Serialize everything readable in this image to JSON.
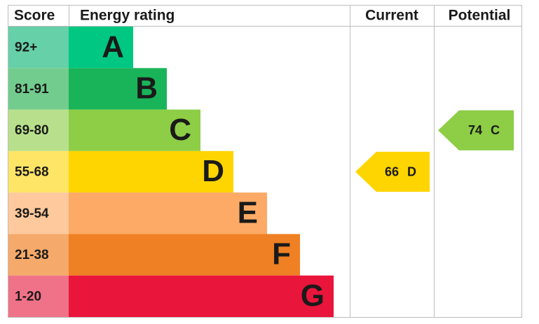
{
  "chart_data": {
    "type": "epc",
    "headers": [
      "Score",
      "Energy rating",
      "Current",
      "Potential"
    ],
    "bands": [
      {
        "score": "92+",
        "letter": "A",
        "color": "#00c781",
        "score_color": "#66d0a8"
      },
      {
        "score": "81-91",
        "letter": "B",
        "color": "#19b459",
        "score_color": "#72cc8e"
      },
      {
        "score": "69-80",
        "letter": "C",
        "color": "#8dce46",
        "score_color": "#b8e08c"
      },
      {
        "score": "55-68",
        "letter": "D",
        "color": "#ffd500",
        "score_color": "#ffe566"
      },
      {
        "score": "39-54",
        "letter": "E",
        "color": "#fcaa65",
        "score_color": "#fdc99d"
      },
      {
        "score": "21-38",
        "letter": "F",
        "color": "#ef8023",
        "score_color": "#f5a96a"
      },
      {
        "score": "1-20",
        "letter": "G",
        "color": "#e9153b",
        "score_color": "#f07288"
      }
    ],
    "current": {
      "value": 66,
      "band": "D"
    },
    "potential": {
      "value": 74,
      "band": "C"
    }
  }
}
